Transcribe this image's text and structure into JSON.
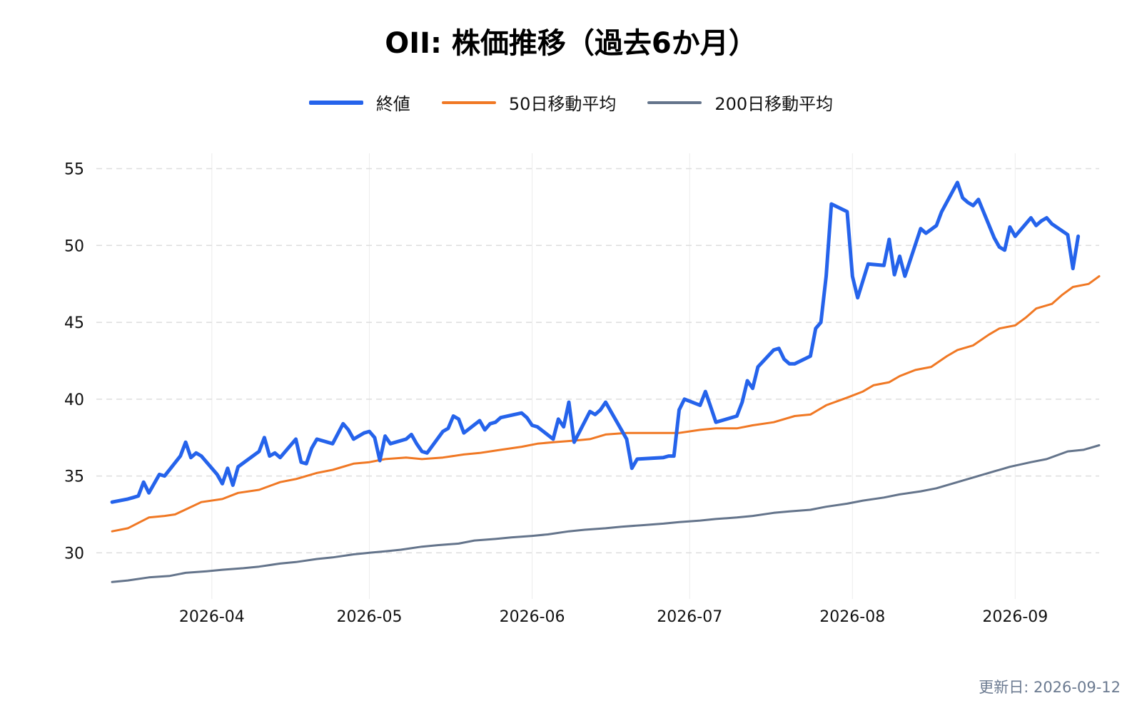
{
  "chart_data": {
    "type": "line",
    "title": "OII: 株価推移（過去6か月）",
    "xlabel": "",
    "ylabel": "",
    "ylim": [
      27,
      56
    ],
    "yticks": [
      30,
      35,
      40,
      45,
      50,
      55
    ],
    "xlim": [
      "2026-03-10",
      "2026-09-17"
    ],
    "xticks": [
      "2026-04",
      "2026-05",
      "2026-06",
      "2026-07",
      "2026-08",
      "2026-09"
    ],
    "grid": true,
    "legend_position": "top-center",
    "series": [
      {
        "name": "終値",
        "color": "#2563eb",
        "points": [
          [
            "2026-03-13",
            33.3
          ],
          [
            "2026-03-16",
            33.5
          ],
          [
            "2026-03-17",
            33.6
          ],
          [
            "2026-03-18",
            33.7
          ],
          [
            "2026-03-19",
            34.6
          ],
          [
            "2026-03-20",
            33.9
          ],
          [
            "2026-03-22",
            35.1
          ],
          [
            "2026-03-23",
            35.0
          ],
          [
            "2026-03-26",
            36.3
          ],
          [
            "2026-03-27",
            37.2
          ],
          [
            "2026-03-28",
            36.2
          ],
          [
            "2026-03-29",
            36.5
          ],
          [
            "2026-03-30",
            36.3
          ],
          [
            "2026-03-31",
            35.9
          ],
          [
            "2026-04-02",
            35.1
          ],
          [
            "2026-04-03",
            34.5
          ],
          [
            "2026-04-04",
            35.5
          ],
          [
            "2026-04-05",
            34.4
          ],
          [
            "2026-04-06",
            35.6
          ],
          [
            "2026-04-10",
            36.6
          ],
          [
            "2026-04-11",
            37.5
          ],
          [
            "2026-04-12",
            36.3
          ],
          [
            "2026-04-13",
            36.5
          ],
          [
            "2026-04-14",
            36.2
          ],
          [
            "2026-04-17",
            37.4
          ],
          [
            "2026-04-18",
            35.9
          ],
          [
            "2026-04-19",
            35.8
          ],
          [
            "2026-04-20",
            36.8
          ],
          [
            "2026-04-21",
            37.4
          ],
          [
            "2026-04-24",
            37.1
          ],
          [
            "2026-04-26",
            38.4
          ],
          [
            "2026-04-27",
            38.0
          ],
          [
            "2026-04-28",
            37.4
          ],
          [
            "2026-04-30",
            37.8
          ],
          [
            "2026-05-01",
            37.9
          ],
          [
            "2026-05-02",
            37.5
          ],
          [
            "2026-05-03",
            36.0
          ],
          [
            "2026-05-04",
            37.6
          ],
          [
            "2026-05-05",
            37.1
          ],
          [
            "2026-05-08",
            37.4
          ],
          [
            "2026-05-09",
            37.7
          ],
          [
            "2026-05-10",
            37.1
          ],
          [
            "2026-05-11",
            36.6
          ],
          [
            "2026-05-12",
            36.5
          ],
          [
            "2026-05-15",
            37.9
          ],
          [
            "2026-05-16",
            38.1
          ],
          [
            "2026-05-17",
            38.9
          ],
          [
            "2026-05-18",
            38.7
          ],
          [
            "2026-05-19",
            37.8
          ],
          [
            "2026-05-22",
            38.6
          ],
          [
            "2026-05-23",
            38.0
          ],
          [
            "2026-05-24",
            38.4
          ],
          [
            "2026-05-25",
            38.5
          ],
          [
            "2026-05-26",
            38.8
          ],
          [
            "2026-05-30",
            39.1
          ],
          [
            "2026-05-31",
            38.8
          ],
          [
            "2026-06-01",
            38.3
          ],
          [
            "2026-06-02",
            38.2
          ],
          [
            "2026-06-05",
            37.4
          ],
          [
            "2026-06-06",
            38.7
          ],
          [
            "2026-06-07",
            38.2
          ],
          [
            "2026-06-08",
            39.8
          ],
          [
            "2026-06-09",
            37.2
          ],
          [
            "2026-06-12",
            39.2
          ],
          [
            "2026-06-13",
            39.0
          ],
          [
            "2026-06-14",
            39.3
          ],
          [
            "2026-06-15",
            39.8
          ],
          [
            "2026-06-19",
            37.4
          ],
          [
            "2026-06-20",
            35.5
          ],
          [
            "2026-06-21",
            36.1
          ],
          [
            "2026-06-26",
            36.2
          ],
          [
            "2026-06-27",
            36.3
          ],
          [
            "2026-06-28",
            36.3
          ],
          [
            "2026-06-29",
            39.3
          ],
          [
            "2026-06-30",
            40.0
          ],
          [
            "2026-07-03",
            39.6
          ],
          [
            "2026-07-04",
            40.5
          ],
          [
            "2026-07-05",
            39.5
          ],
          [
            "2026-07-06",
            38.5
          ],
          [
            "2026-07-10",
            38.9
          ],
          [
            "2026-07-11",
            39.8
          ],
          [
            "2026-07-12",
            41.2
          ],
          [
            "2026-07-13",
            40.7
          ],
          [
            "2026-07-14",
            42.1
          ],
          [
            "2026-07-17",
            43.2
          ],
          [
            "2026-07-18",
            43.3
          ],
          [
            "2026-07-19",
            42.6
          ],
          [
            "2026-07-20",
            42.3
          ],
          [
            "2026-07-21",
            42.3
          ],
          [
            "2026-07-24",
            42.8
          ],
          [
            "2026-07-25",
            44.6
          ],
          [
            "2026-07-26",
            45.0
          ],
          [
            "2026-07-27",
            48.0
          ],
          [
            "2026-07-28",
            52.7
          ],
          [
            "2026-07-31",
            52.2
          ],
          [
            "2026-08-01",
            48.0
          ],
          [
            "2026-08-02",
            46.6
          ],
          [
            "2026-08-04",
            48.8
          ],
          [
            "2026-08-07",
            48.7
          ],
          [
            "2026-08-08",
            50.4
          ],
          [
            "2026-08-09",
            48.1
          ],
          [
            "2026-08-10",
            49.3
          ],
          [
            "2026-08-11",
            48.0
          ],
          [
            "2026-08-14",
            51.1
          ],
          [
            "2026-08-15",
            50.8
          ],
          [
            "2026-08-17",
            51.3
          ],
          [
            "2026-08-18",
            52.2
          ],
          [
            "2026-08-21",
            54.1
          ],
          [
            "2026-08-22",
            53.1
          ],
          [
            "2026-08-23",
            52.8
          ],
          [
            "2026-08-24",
            52.6
          ],
          [
            "2026-08-25",
            53.0
          ],
          [
            "2026-08-28",
            50.5
          ],
          [
            "2026-08-29",
            49.9
          ],
          [
            "2026-08-30",
            49.7
          ],
          [
            "2026-08-31",
            51.2
          ],
          [
            "2026-09-01",
            50.6
          ],
          [
            "2026-09-04",
            51.8
          ],
          [
            "2026-09-05",
            51.3
          ],
          [
            "2026-09-06",
            51.6
          ],
          [
            "2026-09-07",
            51.8
          ],
          [
            "2026-09-08",
            51.4
          ],
          [
            "2026-09-11",
            50.7
          ],
          [
            "2026-09-12",
            48.5
          ],
          [
            "2026-09-13",
            50.6
          ]
        ]
      },
      {
        "name": "50日移動平均",
        "color": "#f07824",
        "points": [
          [
            "2026-03-13",
            31.4
          ],
          [
            "2026-03-16",
            31.6
          ],
          [
            "2026-03-20",
            32.3
          ],
          [
            "2026-03-23",
            32.4
          ],
          [
            "2026-03-25",
            32.5
          ],
          [
            "2026-03-30",
            33.3
          ],
          [
            "2026-04-03",
            33.5
          ],
          [
            "2026-04-06",
            33.9
          ],
          [
            "2026-04-10",
            34.1
          ],
          [
            "2026-04-14",
            34.6
          ],
          [
            "2026-04-17",
            34.8
          ],
          [
            "2026-04-21",
            35.2
          ],
          [
            "2026-04-24",
            35.4
          ],
          [
            "2026-04-28",
            35.8
          ],
          [
            "2026-05-01",
            35.9
          ],
          [
            "2026-05-04",
            36.1
          ],
          [
            "2026-05-08",
            36.2
          ],
          [
            "2026-05-11",
            36.1
          ],
          [
            "2026-05-15",
            36.2
          ],
          [
            "2026-05-19",
            36.4
          ],
          [
            "2026-05-22",
            36.5
          ],
          [
            "2026-05-26",
            36.7
          ],
          [
            "2026-05-30",
            36.9
          ],
          [
            "2026-06-02",
            37.1
          ],
          [
            "2026-06-05",
            37.2
          ],
          [
            "2026-06-09",
            37.3
          ],
          [
            "2026-06-12",
            37.4
          ],
          [
            "2026-06-15",
            37.7
          ],
          [
            "2026-06-19",
            37.8
          ],
          [
            "2026-06-22",
            37.8
          ],
          [
            "2026-06-26",
            37.8
          ],
          [
            "2026-06-29",
            37.8
          ],
          [
            "2026-07-03",
            38.0
          ],
          [
            "2026-07-06",
            38.1
          ],
          [
            "2026-07-10",
            38.1
          ],
          [
            "2026-07-13",
            38.3
          ],
          [
            "2026-07-17",
            38.5
          ],
          [
            "2026-07-21",
            38.9
          ],
          [
            "2026-07-24",
            39.0
          ],
          [
            "2026-07-27",
            39.6
          ],
          [
            "2026-07-31",
            40.1
          ],
          [
            "2026-08-03",
            40.5
          ],
          [
            "2026-08-05",
            40.9
          ],
          [
            "2026-08-08",
            41.1
          ],
          [
            "2026-08-10",
            41.5
          ],
          [
            "2026-08-13",
            41.9
          ],
          [
            "2026-08-16",
            42.1
          ],
          [
            "2026-08-19",
            42.8
          ],
          [
            "2026-08-21",
            43.2
          ],
          [
            "2026-08-24",
            43.5
          ],
          [
            "2026-08-27",
            44.2
          ],
          [
            "2026-08-29",
            44.6
          ],
          [
            "2026-09-01",
            44.8
          ],
          [
            "2026-09-03",
            45.3
          ],
          [
            "2026-09-05",
            45.9
          ],
          [
            "2026-09-08",
            46.2
          ],
          [
            "2026-09-10",
            46.8
          ],
          [
            "2026-09-12",
            47.3
          ],
          [
            "2026-09-15",
            47.5
          ],
          [
            "2026-09-17",
            48.0
          ]
        ]
      },
      {
        "name": "200日移動平均",
        "color": "#64748b",
        "points": [
          [
            "2026-03-13",
            28.1
          ],
          [
            "2026-03-16",
            28.2
          ],
          [
            "2026-03-20",
            28.4
          ],
          [
            "2026-03-24",
            28.5
          ],
          [
            "2026-03-27",
            28.7
          ],
          [
            "2026-03-31",
            28.8
          ],
          [
            "2026-04-03",
            28.9
          ],
          [
            "2026-04-07",
            29.0
          ],
          [
            "2026-04-10",
            29.1
          ],
          [
            "2026-04-14",
            29.3
          ],
          [
            "2026-04-17",
            29.4
          ],
          [
            "2026-04-21",
            29.6
          ],
          [
            "2026-04-24",
            29.7
          ],
          [
            "2026-04-28",
            29.9
          ],
          [
            "2026-05-01",
            30.0
          ],
          [
            "2026-05-04",
            30.1
          ],
          [
            "2026-05-07",
            30.2
          ],
          [
            "2026-05-11",
            30.4
          ],
          [
            "2026-05-14",
            30.5
          ],
          [
            "2026-05-18",
            30.6
          ],
          [
            "2026-05-21",
            30.8
          ],
          [
            "2026-05-25",
            30.9
          ],
          [
            "2026-05-28",
            31.0
          ],
          [
            "2026-06-01",
            31.1
          ],
          [
            "2026-06-04",
            31.2
          ],
          [
            "2026-06-08",
            31.4
          ],
          [
            "2026-06-11",
            31.5
          ],
          [
            "2026-06-15",
            31.6
          ],
          [
            "2026-06-18",
            31.7
          ],
          [
            "2026-06-22",
            31.8
          ],
          [
            "2026-06-26",
            31.9
          ],
          [
            "2026-06-29",
            32.0
          ],
          [
            "2026-07-03",
            32.1
          ],
          [
            "2026-07-06",
            32.2
          ],
          [
            "2026-07-10",
            32.3
          ],
          [
            "2026-07-13",
            32.4
          ],
          [
            "2026-07-17",
            32.6
          ],
          [
            "2026-07-20",
            32.7
          ],
          [
            "2026-07-24",
            32.8
          ],
          [
            "2026-07-27",
            33.0
          ],
          [
            "2026-07-31",
            33.2
          ],
          [
            "2026-08-03",
            33.4
          ],
          [
            "2026-08-07",
            33.6
          ],
          [
            "2026-08-10",
            33.8
          ],
          [
            "2026-08-14",
            34.0
          ],
          [
            "2026-08-17",
            34.2
          ],
          [
            "2026-08-21",
            34.6
          ],
          [
            "2026-08-24",
            34.9
          ],
          [
            "2026-08-28",
            35.3
          ],
          [
            "2026-08-31",
            35.6
          ],
          [
            "2026-09-04",
            35.9
          ],
          [
            "2026-09-07",
            36.1
          ],
          [
            "2026-09-11",
            36.6
          ],
          [
            "2026-09-14",
            36.7
          ],
          [
            "2026-09-17",
            37.0
          ]
        ]
      }
    ]
  },
  "footer": {
    "updated": "更新日: 2026-09-12"
  }
}
